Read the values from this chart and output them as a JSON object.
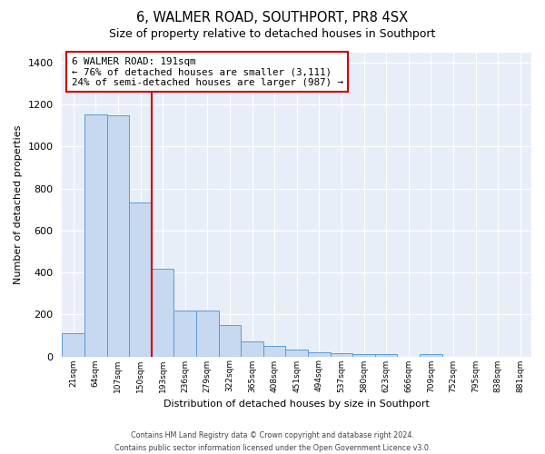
{
  "title1": "6, WALMER ROAD, SOUTHPORT, PR8 4SX",
  "title2": "Size of property relative to detached houses in Southport",
  "xlabel": "Distribution of detached houses by size in Southport",
  "ylabel": "Number of detached properties",
  "bar_labels": [
    "21sqm",
    "64sqm",
    "107sqm",
    "150sqm",
    "193sqm",
    "236sqm",
    "279sqm",
    "322sqm",
    "365sqm",
    "408sqm",
    "451sqm",
    "494sqm",
    "537sqm",
    "580sqm",
    "623sqm",
    "666sqm",
    "709sqm",
    "752sqm",
    "795sqm",
    "838sqm",
    "881sqm"
  ],
  "bar_values": [
    110,
    1155,
    1148,
    733,
    418,
    220,
    218,
    148,
    72,
    50,
    32,
    20,
    15,
    13,
    10,
    0,
    12,
    0,
    0,
    0,
    0
  ],
  "bar_color": "#c6d9f0",
  "bar_edge_color": "#5b9bd5",
  "vline_color": "#cc0000",
  "annotation_text": "6 WALMER ROAD: 191sqm\n← 76% of detached houses are smaller (3,111)\n24% of semi-detached houses are larger (987) →",
  "annotation_box_color": "#ffffff",
  "annotation_box_edge": "#cc0000",
  "ylim": [
    0,
    1450
  ],
  "yticks": [
    0,
    200,
    400,
    600,
    800,
    1000,
    1200,
    1400
  ],
  "bg_color": "#ffffff",
  "plot_bg_color": "#e8eef8",
  "grid_color": "#ffffff",
  "footer": "Contains HM Land Registry data © Crown copyright and database right 2024.\nContains public sector information licensed under the Open Government Licence v3.0."
}
